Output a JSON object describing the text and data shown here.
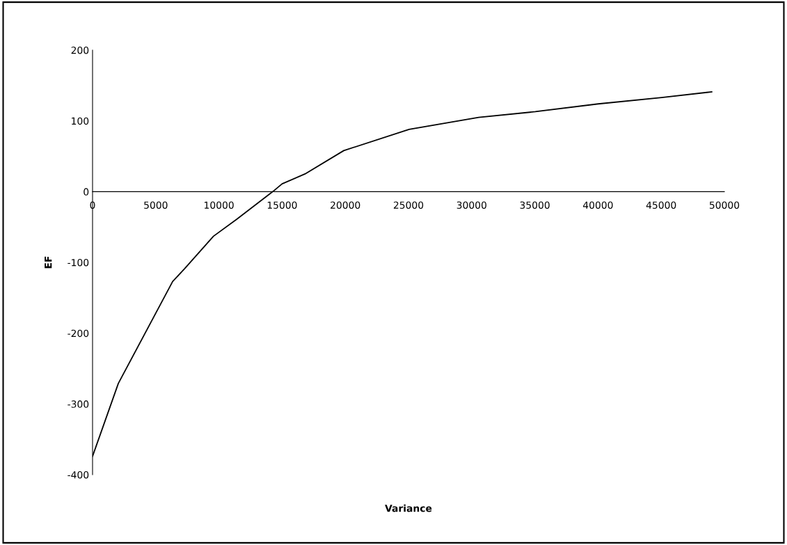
{
  "chart_data": {
    "type": "line",
    "xlabel": "Variance",
    "ylabel": "EF",
    "x": [
      0,
      2040,
      6340,
      7280,
      9570,
      11410,
      14260,
      15000,
      16810,
      19880,
      25050,
      30560,
      35040,
      40020,
      45040,
      49000
    ],
    "series": [
      {
        "color": "#000000",
        "values": [
          -374,
          -271,
          -127,
          -109,
          -63,
          -39,
          0,
          11,
          25,
          58,
          88,
          105,
          113,
          124,
          133,
          141
        ]
      }
    ],
    "xlim": [
      0,
      50000
    ],
    "xticks": [
      0,
      5000,
      10000,
      15000,
      20000,
      25000,
      30000,
      35000,
      40000,
      45000,
      50000
    ],
    "ylim": [
      -400,
      200
    ],
    "yticks": [
      -400,
      -300,
      -200,
      -100,
      0,
      100,
      200
    ],
    "grid": false,
    "legend": false,
    "marker": "none",
    "line_style": "solid"
  }
}
